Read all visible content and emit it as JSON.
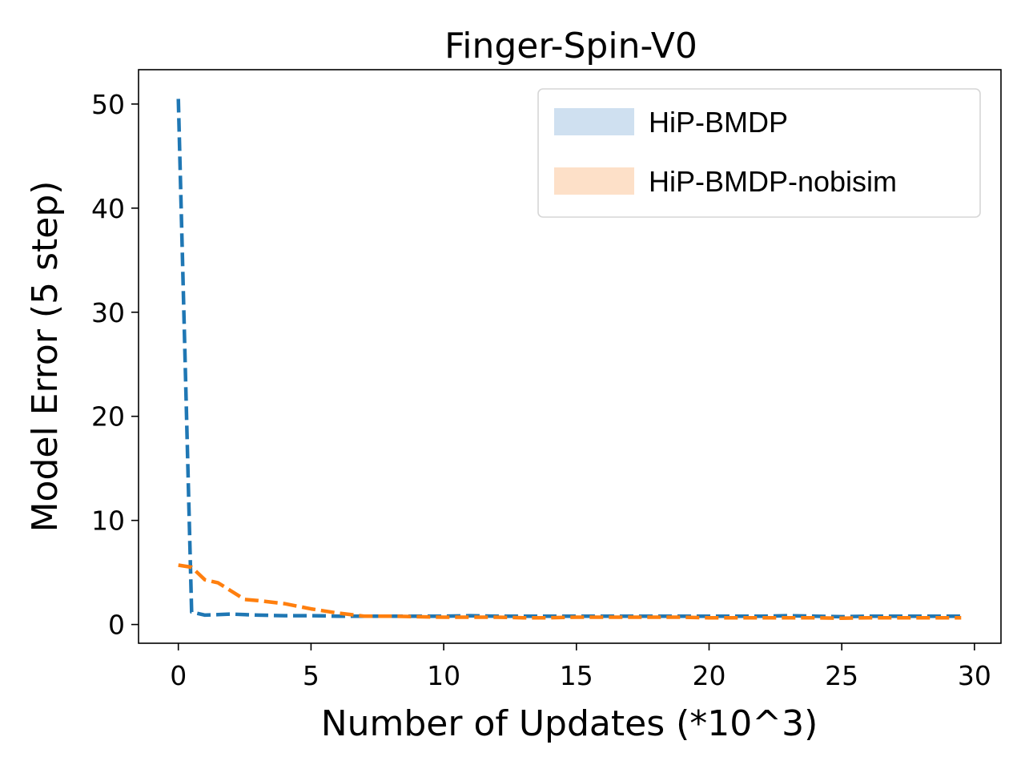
{
  "chart_data": {
    "type": "line",
    "title": "Finger-Spin-V0",
    "xlabel": "Number of Updates (*10^3)",
    "ylabel": "Model Error (5 step)",
    "xlim": [
      -1.5,
      31.0
    ],
    "ylim": [
      -1.8,
      53.3
    ],
    "xticks": [
      0,
      5,
      10,
      15,
      20,
      25,
      30
    ],
    "yticks": [
      0,
      10,
      20,
      30,
      40,
      50
    ],
    "grid": false,
    "legend_position": "top-right",
    "series": [
      {
        "name": "HiP-BMDP",
        "color": "#1f77b4",
        "legend_color": "#cfe0f0",
        "line_style": "dashed",
        "x": [
          0,
          0.5,
          1,
          1.5,
          2,
          2.5,
          3,
          4,
          5,
          6,
          7,
          8,
          9,
          10,
          11,
          12,
          13,
          14,
          15,
          16,
          17,
          18,
          19,
          20,
          21,
          22,
          23,
          24,
          25,
          26,
          27,
          28,
          29.5
        ],
        "y": [
          50.5,
          1.2,
          0.9,
          0.95,
          1.0,
          0.95,
          0.9,
          0.85,
          0.85,
          0.8,
          0.8,
          0.8,
          0.8,
          0.8,
          0.85,
          0.8,
          0.8,
          0.8,
          0.8,
          0.8,
          0.8,
          0.8,
          0.8,
          0.8,
          0.8,
          0.8,
          0.85,
          0.8,
          0.75,
          0.8,
          0.8,
          0.8,
          0.8
        ]
      },
      {
        "name": "HiP-BMDP-nobisim",
        "color": "#ff7f0e",
        "legend_color": "#fde0c8",
        "line_style": "dashed",
        "x": [
          0,
          0.5,
          1,
          1.5,
          2,
          2.5,
          3,
          4,
          5,
          6,
          7,
          8,
          9,
          10,
          11,
          12,
          13,
          14,
          15,
          16,
          17,
          18,
          19,
          20,
          21,
          22,
          23,
          24,
          25,
          26,
          27,
          28,
          29.5
        ],
        "y": [
          5.7,
          5.5,
          4.3,
          4.0,
          3.2,
          2.4,
          2.3,
          2.0,
          1.5,
          1.1,
          0.8,
          0.8,
          0.75,
          0.7,
          0.7,
          0.7,
          0.65,
          0.65,
          0.7,
          0.7,
          0.7,
          0.7,
          0.7,
          0.65,
          0.65,
          0.65,
          0.65,
          0.65,
          0.6,
          0.65,
          0.65,
          0.65,
          0.65
        ]
      }
    ]
  }
}
